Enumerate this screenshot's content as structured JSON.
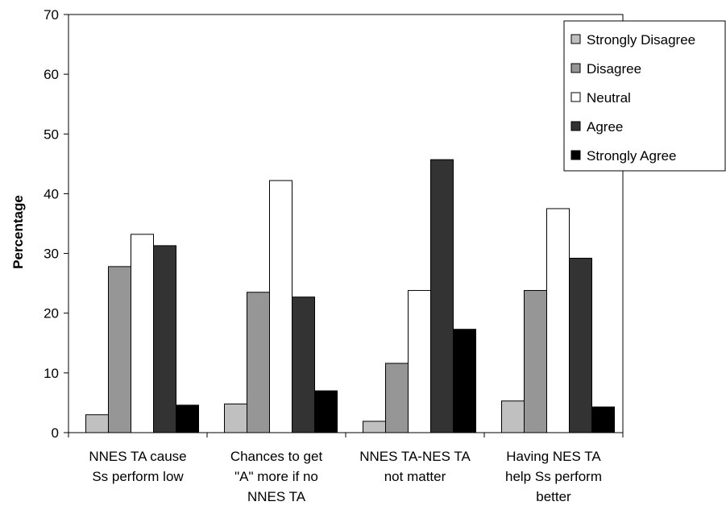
{
  "chart_data": {
    "type": "bar",
    "title": "",
    "xlabel": "",
    "ylabel": "Percentage",
    "ylim": [
      0,
      70
    ],
    "yticks": [
      0,
      10,
      20,
      30,
      40,
      50,
      60,
      70
    ],
    "grid": false,
    "legend_position": "top-right",
    "categories": [
      [
        "NNES TA cause",
        "Ss perform low"
      ],
      [
        "Chances to get",
        "\"A\" more if no",
        "NNES TA"
      ],
      [
        "NNES TA-NES TA",
        "not matter"
      ],
      [
        "Having NES TA",
        "help Ss perform",
        "better"
      ]
    ],
    "series": [
      {
        "name": "Strongly Disagree",
        "color": "#c0c0c0",
        "values": [
          3.0,
          4.8,
          1.9,
          5.3
        ]
      },
      {
        "name": "Disagree",
        "color": "#969696",
        "values": [
          27.8,
          23.5,
          11.6,
          23.8
        ]
      },
      {
        "name": "Neutral",
        "color": "#ffffff",
        "values": [
          33.2,
          42.2,
          23.8,
          37.5
        ]
      },
      {
        "name": "Agree",
        "color": "#333333",
        "values": [
          31.3,
          22.7,
          45.7,
          29.2
        ]
      },
      {
        "name": "Strongly Agree",
        "color": "#000000",
        "values": [
          4.6,
          7.0,
          17.3,
          4.3
        ]
      }
    ]
  }
}
